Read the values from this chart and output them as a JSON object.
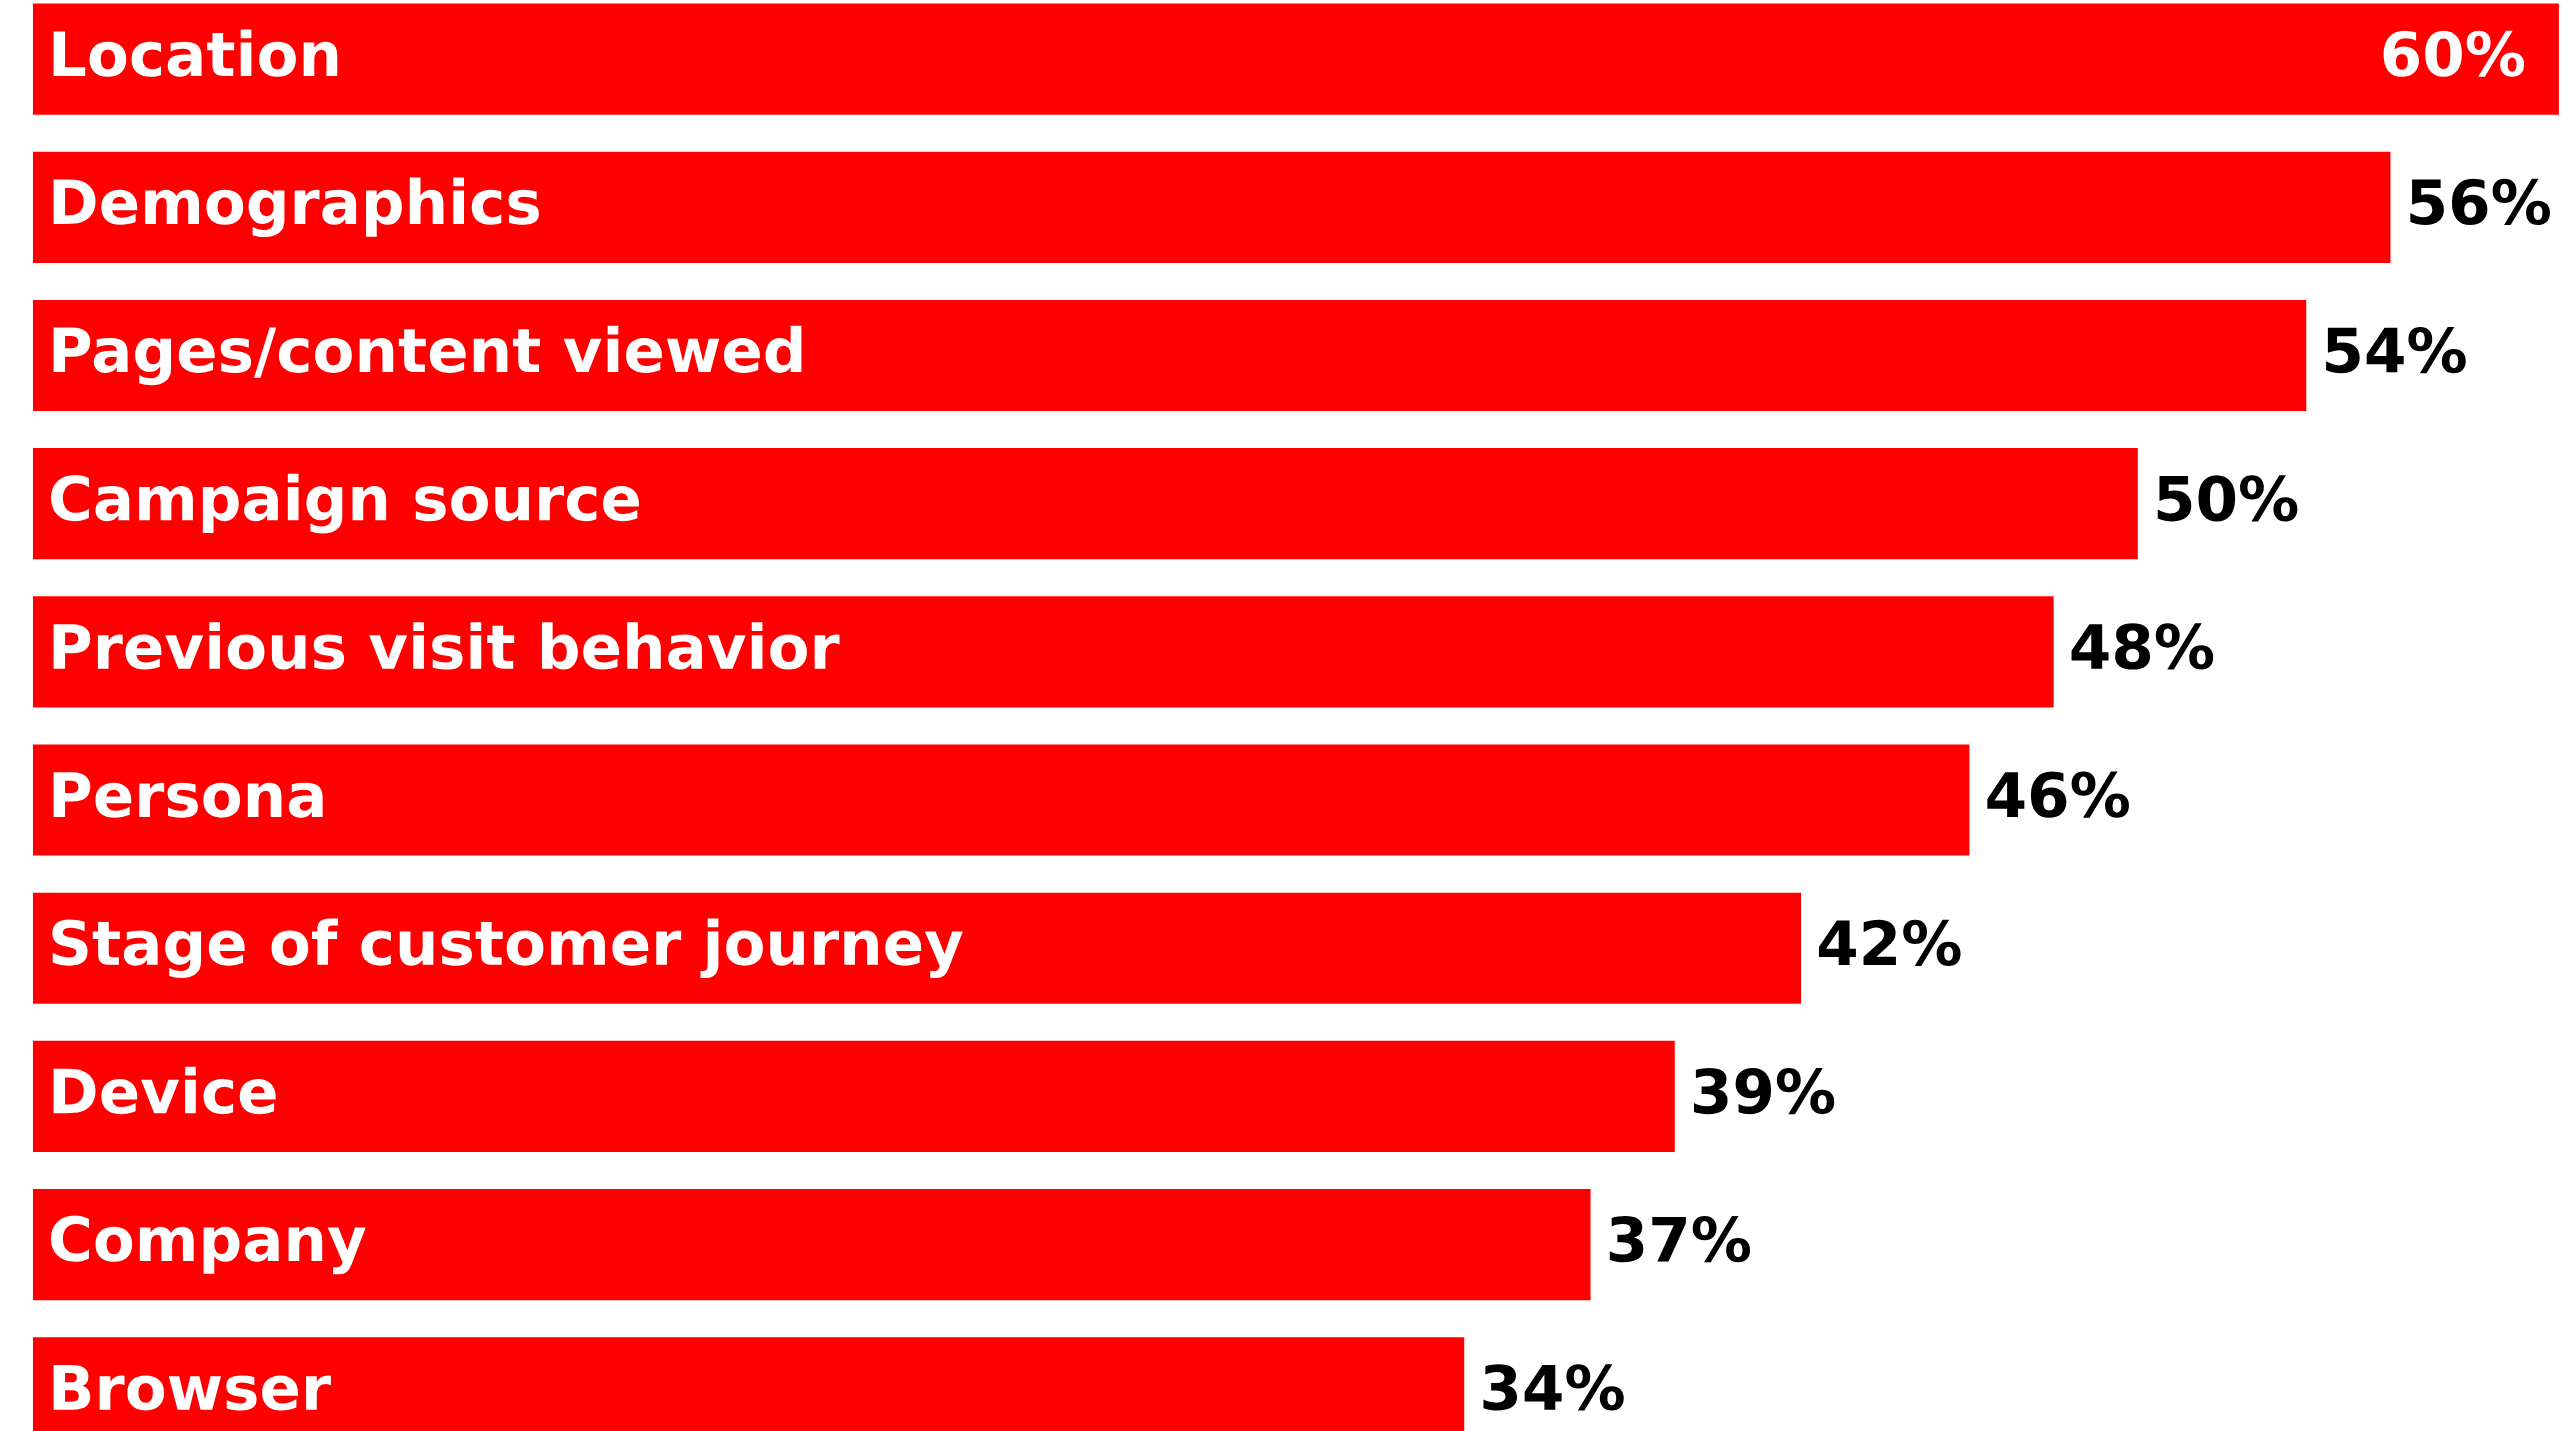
{
  "chart_data": {
    "type": "bar",
    "orientation": "horizontal",
    "categories": [
      "Location",
      "Demographics",
      "Pages/content viewed",
      "Campaign source",
      "Previous visit behavior",
      "Persona",
      "Stage of customer journey",
      "Device",
      "Company",
      "Browser"
    ],
    "values": [
      60,
      56,
      54,
      50,
      48,
      46,
      42,
      39,
      37,
      34
    ],
    "value_labels": [
      "60%",
      "56%",
      "54%",
      "50%",
      "48%",
      "46%",
      "42%",
      "39%",
      "37%",
      "34%"
    ],
    "color": "#fe0000"
  }
}
